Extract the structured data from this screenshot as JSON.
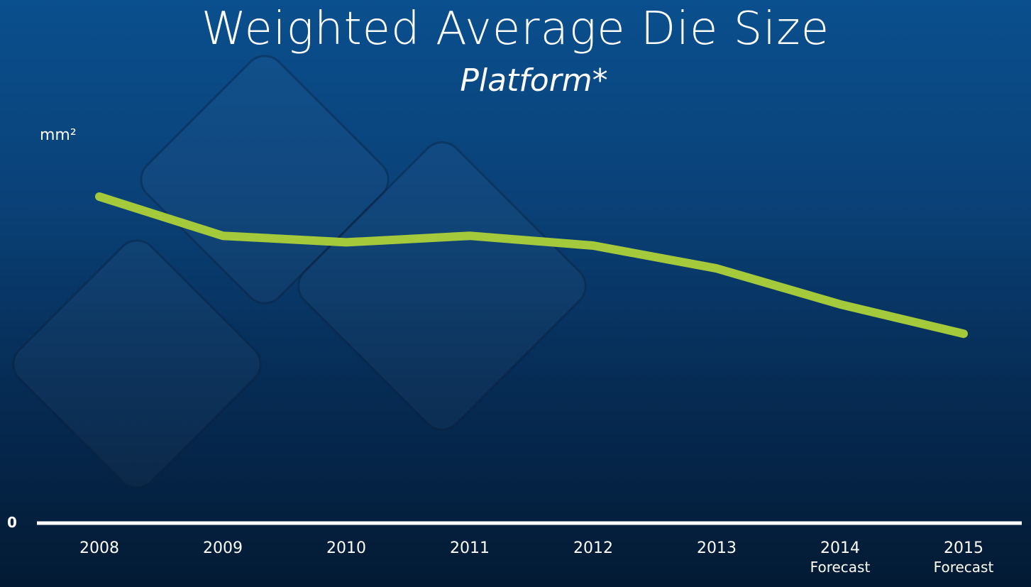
{
  "chart_data": {
    "type": "line",
    "title": "Weighted Average Die Size",
    "subtitle": "Platform*",
    "ylabel": "mm²",
    "xlabel": "",
    "y_tick_labels": [
      "0"
    ],
    "categories": [
      "2008",
      "2009",
      "2010",
      "2011",
      "2012",
      "2013",
      "2014",
      "2015"
    ],
    "category_sublabels": [
      "",
      "",
      "",
      "",
      "",
      "",
      "Forecast",
      "Forecast"
    ],
    "values": [
      100,
      88,
      86,
      88,
      85,
      78,
      67,
      58
    ],
    "ylim": [
      0,
      100
    ],
    "grid": false,
    "line_color": "#a4c93a",
    "axis_color": "#ffffff"
  }
}
